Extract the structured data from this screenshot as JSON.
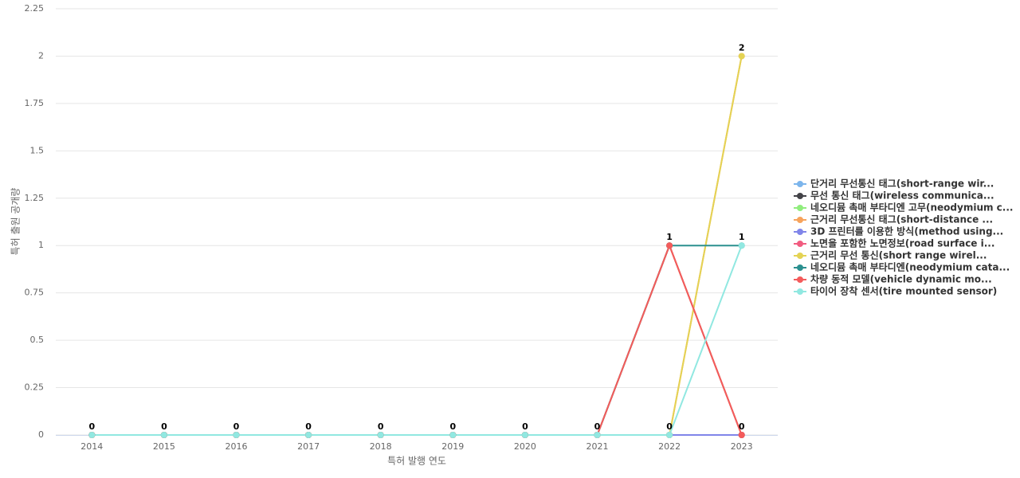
{
  "chart_data": {
    "type": "line",
    "x_label": "특허 발행 연도",
    "y_label": "특허 출원 공개량",
    "categories": [
      "2014",
      "2015",
      "2016",
      "2017",
      "2018",
      "2019",
      "2020",
      "2021",
      "2022",
      "2023"
    ],
    "ylim": [
      0,
      2.25
    ],
    "yticks": [
      0,
      0.25,
      0.5,
      0.75,
      1,
      1.25,
      1.5,
      1.75,
      2,
      2.25
    ],
    "grid": true,
    "legend": "right",
    "series": [
      {
        "name": "단거리 무선통신 태그(short-range wir...",
        "color": "#7cb5ec",
        "values": [
          0,
          0,
          0,
          0,
          0,
          0,
          0,
          0,
          0,
          0
        ]
      },
      {
        "name": "무선 통신 태그(wireless communica...",
        "color": "#434348",
        "values": [
          0,
          0,
          0,
          0,
          0,
          0,
          0,
          0,
          0,
          0
        ]
      },
      {
        "name": "네오디뮴 촉매 부타디엔 고무(neodymium c...",
        "color": "#90ed7d",
        "values": [
          0,
          0,
          0,
          0,
          0,
          0,
          0,
          0,
          1,
          0
        ]
      },
      {
        "name": "근거리 무선통신 태그(short-distance ...",
        "color": "#f7a35c",
        "values": [
          0,
          0,
          0,
          0,
          0,
          0,
          0,
          0,
          0,
          2
        ]
      },
      {
        "name": "3D 프린터를 이용한 방식(method using...",
        "color": "#8085e9",
        "values": [
          0,
          0,
          0,
          0,
          0,
          0,
          0,
          0,
          0,
          0
        ]
      },
      {
        "name": "노면을 포함한 노면정보(road surface i...",
        "color": "#f15c80",
        "values": [
          0,
          0,
          0,
          0,
          0,
          0,
          0,
          0,
          1,
          0
        ]
      },
      {
        "name": "근거리 무선 통신(short range wirel...",
        "color": "#e4d354",
        "values": [
          0,
          0,
          0,
          0,
          0,
          0,
          0,
          0,
          0,
          2
        ]
      },
      {
        "name": "네오디뮴 촉매 부타디엔(neodymium cata...",
        "color": "#2b908f",
        "values": [
          0,
          0,
          0,
          0,
          0,
          0,
          0,
          0,
          1,
          1
        ]
      },
      {
        "name": "차량 동적 모델(vehicle dynamic mo...",
        "color": "#f45b5b",
        "values": [
          0,
          0,
          0,
          0,
          0,
          0,
          0,
          0,
          1,
          0
        ]
      },
      {
        "name": "타이어 장착 센서(tire mounted sensor)",
        "color": "#91e8e1",
        "values": [
          0,
          0,
          0,
          0,
          0,
          0,
          0,
          0,
          0,
          1
        ]
      }
    ]
  }
}
